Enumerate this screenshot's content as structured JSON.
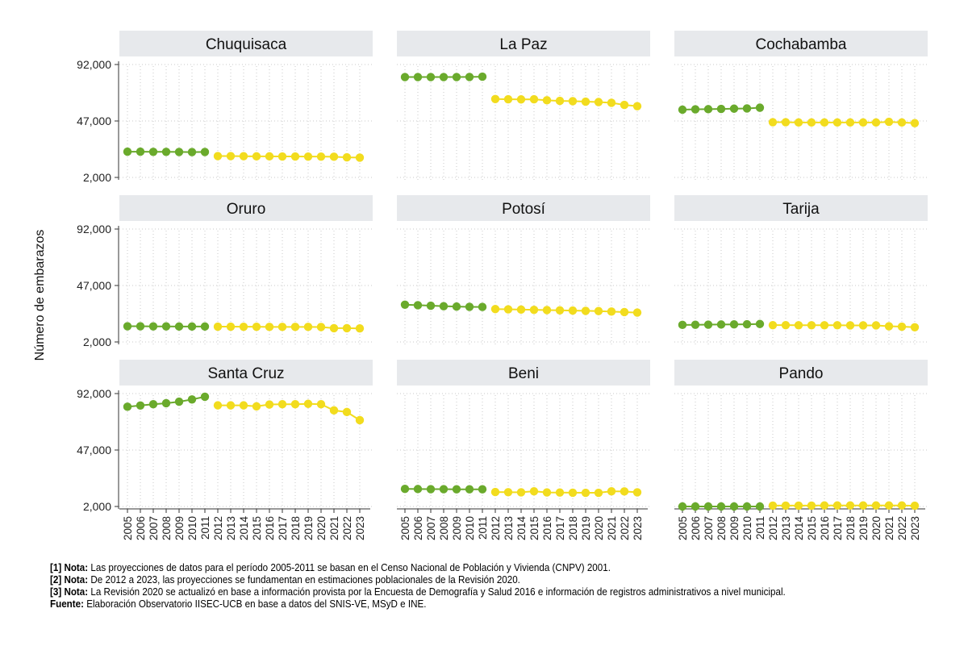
{
  "chart_data": {
    "type": "scatter",
    "ylabel": "Número de embarazos",
    "ylim": [
      2000,
      92000
    ],
    "yticks": [
      2000,
      47000,
      92000
    ],
    "ytick_labels": [
      "2,000",
      "47,000",
      "92,000"
    ],
    "x": [
      2005,
      2006,
      2007,
      2008,
      2009,
      2010,
      2011,
      2012,
      2013,
      2014,
      2015,
      2016,
      2017,
      2018,
      2019,
      2020,
      2021,
      2022,
      2023
    ],
    "xtick_labels": [
      "2005",
      "2006",
      "2007",
      "2008",
      "2009",
      "2010",
      "2011",
      "2012",
      "2013",
      "2014",
      "2015",
      "2016",
      "2017",
      "2018",
      "2019",
      "2020",
      "2021",
      "2022",
      "2023"
    ],
    "series_colors": {
      "cnpv2001": "#6aaa2c",
      "revision2020": "#f2dc1e"
    },
    "split_after_year": 2011,
    "panels": [
      {
        "name": "Chuquisaca",
        "values": [
          22500,
          22500,
          22400,
          22400,
          22300,
          22200,
          22300,
          19000,
          19000,
          18900,
          18800,
          18800,
          18700,
          18700,
          18600,
          18600,
          18500,
          18000,
          17800
        ]
      },
      {
        "name": "La Paz",
        "values": [
          82000,
          82000,
          82000,
          82000,
          82000,
          82100,
          82300,
          64500,
          64300,
          64200,
          64300,
          63500,
          63000,
          62800,
          62400,
          62100,
          61500,
          59800,
          58800
        ]
      },
      {
        "name": "Cochabamba",
        "values": [
          56000,
          56300,
          56400,
          56600,
          56800,
          57000,
          57600,
          46000,
          46000,
          45800,
          45800,
          45800,
          45800,
          45800,
          45800,
          45800,
          46300,
          45800,
          45300
        ]
      },
      {
        "name": "Oruro",
        "values": [
          14500,
          14500,
          14400,
          14400,
          14300,
          14300,
          14300,
          14200,
          14200,
          14100,
          14100,
          14000,
          14000,
          14000,
          14000,
          13900,
          13000,
          13000,
          12800
        ]
      },
      {
        "name": "Potosí",
        "values": [
          31700,
          31300,
          30900,
          30500,
          30200,
          30000,
          29900,
          28200,
          28000,
          27800,
          27600,
          27400,
          27200,
          27000,
          26800,
          26600,
          26200,
          25800,
          25400
        ]
      },
      {
        "name": "Tarija",
        "values": [
          15600,
          15700,
          15800,
          15900,
          16000,
          16100,
          16300,
          15400,
          15400,
          15300,
          15300,
          15300,
          15300,
          15200,
          15200,
          15200,
          14500,
          14200,
          13700
        ]
      },
      {
        "name": "Santa Cruz",
        "values": [
          81500,
          82500,
          83500,
          84300,
          85500,
          87300,
          89500,
          82600,
          82600,
          82600,
          81800,
          83300,
          83500,
          83500,
          83800,
          83500,
          78600,
          77300,
          70800
        ]
      },
      {
        "name": "Beni",
        "values": [
          16000,
          15900,
          15800,
          15800,
          15700,
          15700,
          15700,
          13500,
          13400,
          13300,
          14100,
          13200,
          13100,
          13000,
          12900,
          12900,
          14100,
          14000,
          13300
        ]
      },
      {
        "name": "Pando",
        "values": [
          2000,
          2000,
          2000,
          2000,
          2000,
          2000,
          2000,
          2700,
          2700,
          2700,
          2700,
          2800,
          2800,
          2800,
          2800,
          2800,
          2800,
          2800,
          2600
        ]
      }
    ]
  },
  "notes": [
    {
      "label": "[1] Nota:",
      "text": "Las proyecciones de datos para el período 2005-2011 se basan en el Censo Nacional de Población y Vivienda (CNPV) 2001."
    },
    {
      "label": "[2] Nota:",
      "text": "De 2012 a 2023, las proyecciones se fundamentan en estimaciones poblacionales de la Revisión 2020."
    },
    {
      "label": "[3] Nota:",
      "text": "La Revisión 2020 se actualizó en base a información provista por la Encuesta de Demografía y Salud 2016 e información de registros administrativos a nivel municipal."
    },
    {
      "label": "Fuente:",
      "text": "Elaboración Observatorio IISEC-UCB en base a datos del SNIS-VE, MSyD e INE."
    }
  ]
}
